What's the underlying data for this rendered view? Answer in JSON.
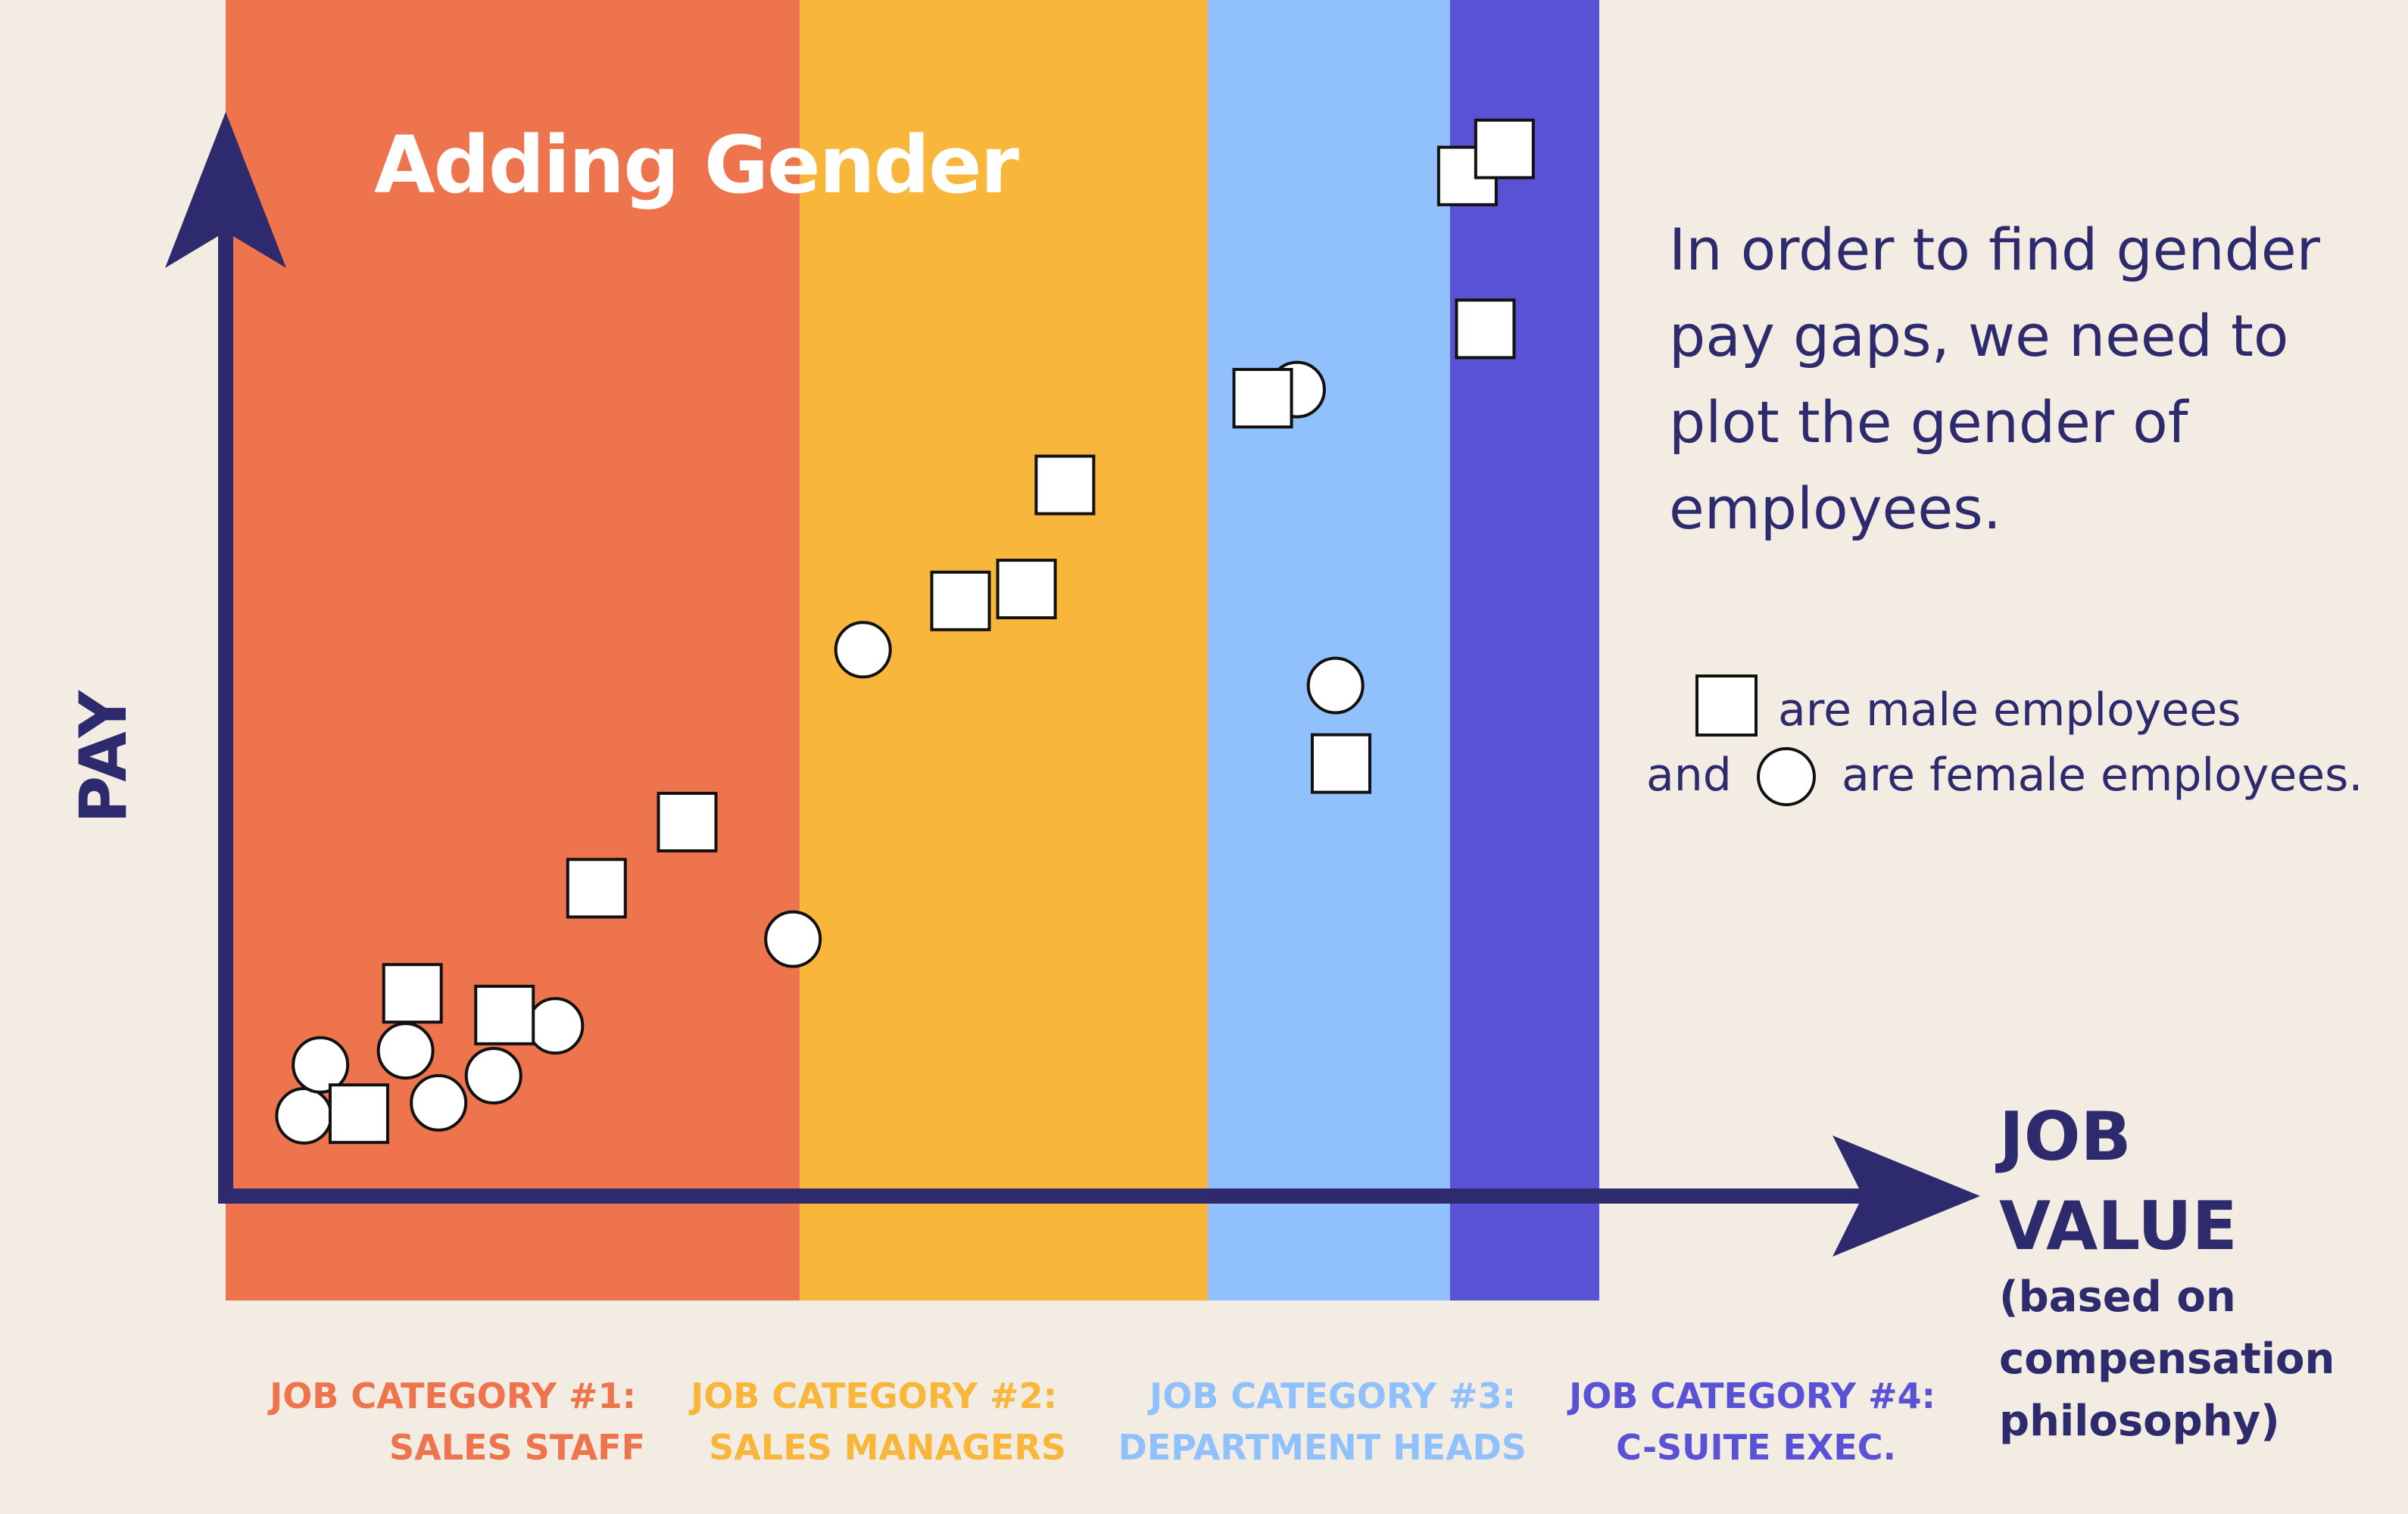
{
  "chart_data": {
    "type": "scatter",
    "title": "Adding Gender",
    "ylabel": "PAY",
    "xlabel": {
      "line1": "JOB",
      "line2": "VALUE",
      "line3": "(based on",
      "line4": "compensation",
      "line5": "philosophy)"
    },
    "colors": {
      "category_1": "#EE744D",
      "category_2": "#F8B63B",
      "category_3": "#91C1FC",
      "category_4": "#5A52D4",
      "axis": "#2E2A6E",
      "background": "#F2ECE2"
    },
    "categories": [
      {
        "id": 1,
        "label_line1": "JOB CATEGORY #1:",
        "label_line2": "SALES STAFF",
        "color": "#EE744D"
      },
      {
        "id": 2,
        "label_line1": "JOB CATEGORY #2:",
        "label_line2": "SALES MANAGERS",
        "color": "#F8B63B"
      },
      {
        "id": 3,
        "label_line1": "JOB CATEGORY #3:",
        "label_line2": "DEPARTMENT HEADS",
        "color": "#91C1FC"
      },
      {
        "id": 4,
        "label_line1": "JOB CATEGORY #4:",
        "label_line2": "C-SUITE EXEC.",
        "color": "#5A52D4"
      }
    ],
    "series": [
      {
        "symbol": "square",
        "points": [
          [
            0.097,
            0.076
          ],
          [
            0.136,
            0.187
          ],
          [
            0.203,
            0.167
          ],
          [
            0.27,
            0.284
          ],
          [
            0.336,
            0.345
          ],
          [
            0.535,
            0.549
          ],
          [
            0.583,
            0.56
          ],
          [
            0.611,
            0.656
          ],
          [
            0.755,
            0.736
          ],
          [
            0.812,
            0.399
          ],
          [
            0.904,
            0.941
          ],
          [
            0.931,
            0.966
          ],
          [
            0.917,
            0.8
          ]
        ]
      },
      {
        "symbol": "circle",
        "points": [
          [
            0.057,
            0.074
          ],
          [
            0.069,
            0.121
          ],
          [
            0.131,
            0.134
          ],
          [
            0.155,
            0.086
          ],
          [
            0.195,
            0.111
          ],
          [
            0.24,
            0.157
          ],
          [
            0.413,
            0.237
          ],
          [
            0.464,
            0.504
          ],
          [
            0.78,
            0.744
          ],
          [
            0.808,
            0.471
          ]
        ]
      }
    ],
    "xlim": [
      0,
      1
    ],
    "ylim": [
      0,
      1
    ]
  },
  "note": {
    "line1": "In order to find gender",
    "line2": "pay gaps, we need to",
    "line3": "plot the gender of",
    "line4": "employees."
  },
  "legend": {
    "male_text": "are male employees",
    "and_text": "and",
    "female_text": "are female employees."
  }
}
